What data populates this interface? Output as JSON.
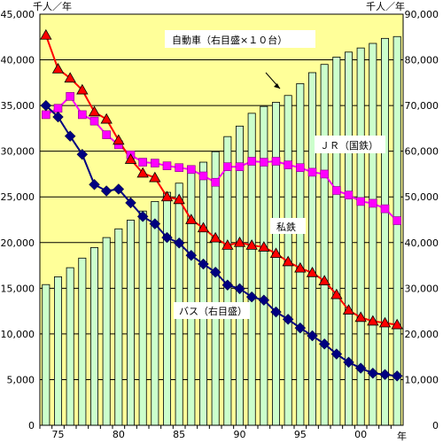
{
  "chart_data": {
    "type": "bar+line",
    "left_axis_unit": "千人／年",
    "right_axis_unit": "千人／年",
    "x_unit": "年",
    "left_ylim": [
      0,
      45000
    ],
    "right_ylim": [
      0,
      90000
    ],
    "left_ticks": [
      "0",
      "5,000",
      "10,000",
      "15,000",
      "20,000",
      "25,000",
      "30,000",
      "35,000",
      "40,000",
      "45,000"
    ],
    "right_ticks": [
      "0",
      "10,000",
      "20,000",
      "30,000",
      "40,000",
      "50,000",
      "60,000",
      "70,000",
      "80,000",
      "90,000"
    ],
    "x_tick_labels": [
      "75",
      "80",
      "85",
      "90",
      "95",
      "00"
    ],
    "years": [
      1974,
      1975,
      1976,
      1977,
      1978,
      1979,
      1980,
      1981,
      1982,
      1983,
      1984,
      1985,
      1986,
      1987,
      1988,
      1989,
      1990,
      1991,
      1992,
      1993,
      1994,
      1995,
      1996,
      1997,
      1998,
      1999,
      2000,
      2001,
      2002,
      2003
    ],
    "grid": true,
    "colors": {
      "plot_bg": "#ffff99",
      "bar_fill": "#ccffcc",
      "bar_stroke": "#000000",
      "jr": "#ff00ff",
      "private": "#ff0000",
      "private_marker": "#ff0000",
      "bus": "#000080"
    },
    "series": [
      {
        "name": "自動車（右目盛×１０台）",
        "axis": "right",
        "kind": "bar",
        "values": [
          30800,
          32500,
          34500,
          36600,
          38900,
          41100,
          43000,
          44900,
          46900,
          49000,
          51000,
          53000,
          55400,
          57600,
          59900,
          63200,
          65500,
          68300,
          69800,
          70700,
          72200,
          74800,
          77200,
          79000,
          80600,
          81700,
          82600,
          83600,
          84700,
          85100
        ]
      },
      {
        "name": "ＪＲ（国鉄）",
        "axis": "left",
        "kind": "line",
        "values": [
          34000,
          34700,
          36000,
          34000,
          33300,
          31800,
          30700,
          29600,
          28800,
          28700,
          28400,
          28200,
          28000,
          27300,
          26600,
          28300,
          28300,
          28900,
          28800,
          28900,
          28500,
          28200,
          27700,
          27500,
          25700,
          25200,
          24500,
          24300,
          23700,
          22400
        ]
      },
      {
        "name": "私鉄",
        "axis": "left",
        "kind": "line",
        "values": [
          42700,
          39000,
          38000,
          36700,
          34300,
          33500,
          31200,
          29100,
          27600,
          27100,
          25000,
          24700,
          22500,
          21600,
          20500,
          19700,
          20000,
          19700,
          19500,
          18800,
          17900,
          17200,
          16700,
          15800,
          14300,
          12600,
          11800,
          11400,
          11200,
          11000
        ]
      },
      {
        "name": "バス（右目盛）",
        "axis": "right",
        "kind": "line",
        "values": [
          70000,
          67500,
          63300,
          59300,
          52700,
          51300,
          51700,
          48700,
          45700,
          44100,
          41100,
          39900,
          37200,
          35300,
          33500,
          30700,
          29900,
          28100,
          27400,
          24800,
          23200,
          21300,
          19600,
          17800,
          15600,
          13800,
          12500,
          11400,
          11100,
          10800
        ]
      }
    ],
    "annotations": [
      {
        "text": "自動車（右目盛×１０台）",
        "target": "自動車（右目盛×１０台）"
      },
      {
        "text": "ＪＲ（国鉄）",
        "target": "ＪＲ（国鉄）"
      },
      {
        "text": "私鉄",
        "target": "私鉄"
      },
      {
        "text": "バス（右目盛）",
        "target": "バス（右目盛）"
      }
    ]
  }
}
